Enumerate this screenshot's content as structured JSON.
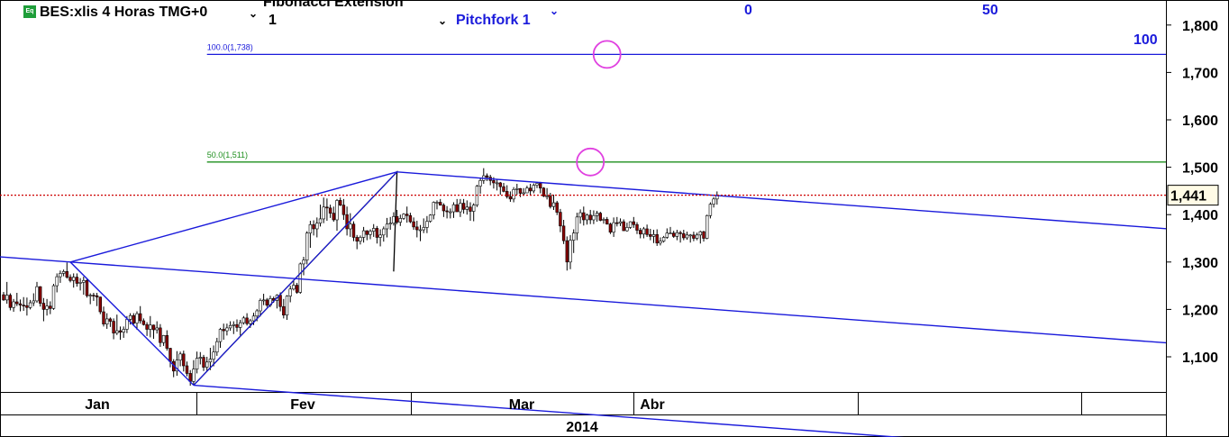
{
  "header": {
    "symbol_badge": "Eq",
    "title": "BES:xlis 4 Horas TMG+0",
    "study_name": "Fibonacci Extension",
    "study_param": "1",
    "pitchfork_name": "Pitchfork 1"
  },
  "colors": {
    "pitchfork": "#1a1adb",
    "fib_50": "#1e8f1e",
    "fib_100": "#1a1adb",
    "last_price_line": "#cc0000",
    "highlight_circle": "#e040e0",
    "candle_down": "#8b0000",
    "candle_up": "#ffffff"
  },
  "chart_data": {
    "type": "candlestick",
    "ylim": [
      1020,
      1860
    ],
    "y_ticks": [
      "1,100",
      "1,200",
      "1,300",
      "1,400",
      "1,500",
      "1,600",
      "1,700",
      "1,800"
    ],
    "last_price": "1,441",
    "x_labels": [
      "Jan",
      "Fev",
      "Mar",
      "Abr"
    ],
    "x_group_label": "2014",
    "fib_levels": [
      {
        "label": "50.0(1,511)",
        "value": 1511
      },
      {
        "label": "100.0(1,738)",
        "value": 1738
      }
    ],
    "pitchfork_labels": [
      "0",
      "50",
      "100"
    ],
    "pitchfork_points": [
      {
        "bar": 20,
        "price": 1300
      },
      {
        "bar": 57,
        "price": 1040
      },
      {
        "bar": 118,
        "price": 1490
      }
    ],
    "fib_anchor_points": [
      {
        "bar": 57,
        "price": 1040
      },
      {
        "bar": 118,
        "price": 1490
      },
      {
        "bar": 117,
        "price": 1280
      }
    ],
    "highlight_points": [
      {
        "bar": 181,
        "price": 1738
      },
      {
        "bar": 176,
        "price": 1511
      }
    ],
    "bars": [
      [
        1231,
        1237,
        1218,
        1220
      ],
      [
        1220,
        1258,
        1212,
        1230
      ],
      [
        1230,
        1234,
        1198,
        1204
      ],
      [
        1204,
        1222,
        1195,
        1216
      ],
      [
        1216,
        1235,
        1207,
        1212
      ],
      [
        1212,
        1221,
        1196,
        1209
      ],
      [
        1209,
        1226,
        1197,
        1208
      ],
      [
        1208,
        1225,
        1187,
        1204
      ],
      [
        1204,
        1220,
        1200,
        1214
      ],
      [
        1214,
        1234,
        1207,
        1218
      ],
      [
        1218,
        1258,
        1214,
        1248
      ],
      [
        1248,
        1249,
        1206,
        1213
      ],
      [
        1213,
        1224,
        1175,
        1200
      ],
      [
        1200,
        1222,
        1187,
        1207
      ],
      [
        1207,
        1217,
        1190,
        1202
      ],
      [
        1202,
        1254,
        1199,
        1250
      ],
      [
        1250,
        1276,
        1236,
        1269
      ],
      [
        1269,
        1282,
        1256,
        1276
      ],
      [
        1276,
        1284,
        1270,
        1280
      ],
      [
        1280,
        1299,
        1265,
        1268
      ],
      [
        1268,
        1274,
        1257,
        1261
      ],
      [
        1261,
        1276,
        1246,
        1268
      ],
      [
        1268,
        1276,
        1248,
        1255
      ],
      [
        1255,
        1266,
        1240,
        1257
      ],
      [
        1257,
        1269,
        1231,
        1261
      ],
      [
        1261,
        1266,
        1225,
        1229
      ],
      [
        1229,
        1234,
        1211,
        1230
      ],
      [
        1230,
        1235,
        1218,
        1229
      ],
      [
        1229,
        1235,
        1207,
        1226
      ],
      [
        1226,
        1227,
        1190,
        1195
      ],
      [
        1195,
        1206,
        1164,
        1169
      ],
      [
        1169,
        1192,
        1159,
        1180
      ],
      [
        1180,
        1183,
        1163,
        1175
      ],
      [
        1175,
        1181,
        1137,
        1150
      ],
      [
        1150,
        1189,
        1146,
        1155
      ],
      [
        1155,
        1164,
        1136,
        1152
      ],
      [
        1152,
        1164,
        1140,
        1158
      ],
      [
        1158,
        1186,
        1150,
        1179
      ],
      [
        1179,
        1192,
        1168,
        1187
      ],
      [
        1187,
        1192,
        1168,
        1171
      ],
      [
        1171,
        1196,
        1157,
        1191
      ],
      [
        1191,
        1207,
        1170,
        1176
      ],
      [
        1176,
        1181,
        1166,
        1168
      ],
      [
        1168,
        1173,
        1144,
        1158
      ],
      [
        1158,
        1186,
        1141,
        1167
      ],
      [
        1167,
        1168,
        1138,
        1157
      ],
      [
        1157,
        1175,
        1149,
        1161
      ],
      [
        1161,
        1169,
        1121,
        1130
      ],
      [
        1130,
        1146,
        1123,
        1145
      ],
      [
        1145,
        1156,
        1113,
        1118
      ],
      [
        1118,
        1119,
        1078,
        1090
      ],
      [
        1090,
        1095,
        1057,
        1070
      ],
      [
        1070,
        1112,
        1060,
        1093
      ],
      [
        1093,
        1111,
        1080,
        1106
      ],
      [
        1106,
        1113,
        1069,
        1081
      ],
      [
        1081,
        1090,
        1059,
        1065
      ],
      [
        1065,
        1072,
        1039,
        1048
      ],
      [
        1048,
        1093,
        1040,
        1074
      ],
      [
        1074,
        1111,
        1065,
        1097
      ],
      [
        1097,
        1110,
        1084,
        1099
      ],
      [
        1099,
        1104,
        1070,
        1078
      ],
      [
        1078,
        1100,
        1070,
        1089
      ],
      [
        1089,
        1119,
        1072,
        1095
      ],
      [
        1095,
        1124,
        1080,
        1110
      ],
      [
        1110,
        1140,
        1102,
        1132
      ],
      [
        1132,
        1161,
        1119,
        1158
      ],
      [
        1158,
        1170,
        1136,
        1155
      ],
      [
        1155,
        1170,
        1145,
        1161
      ],
      [
        1161,
        1175,
        1155,
        1166
      ],
      [
        1166,
        1175,
        1148,
        1168
      ],
      [
        1168,
        1179,
        1153,
        1162
      ],
      [
        1162,
        1178,
        1145,
        1172
      ],
      [
        1172,
        1186,
        1168,
        1182
      ],
      [
        1182,
        1192,
        1166,
        1170
      ],
      [
        1170,
        1180,
        1161,
        1176
      ],
      [
        1176,
        1193,
        1167,
        1186
      ],
      [
        1186,
        1201,
        1175,
        1197
      ],
      [
        1197,
        1223,
        1185,
        1219
      ],
      [
        1219,
        1233,
        1209,
        1220
      ],
      [
        1220,
        1224,
        1205,
        1209
      ],
      [
        1209,
        1229,
        1205,
        1223
      ],
      [
        1223,
        1227,
        1214,
        1219
      ],
      [
        1219,
        1232,
        1202,
        1230
      ],
      [
        1230,
        1236,
        1196,
        1206
      ],
      [
        1206,
        1222,
        1181,
        1188
      ],
      [
        1188,
        1230,
        1178,
        1228
      ],
      [
        1228,
        1250,
        1215,
        1243
      ],
      [
        1243,
        1260,
        1240,
        1251
      ],
      [
        1251,
        1256,
        1233,
        1236
      ],
      [
        1236,
        1299,
        1233,
        1296
      ],
      [
        1296,
        1311,
        1272,
        1304
      ],
      [
        1304,
        1365,
        1295,
        1361
      ],
      [
        1361,
        1387,
        1330,
        1379
      ],
      [
        1379,
        1388,
        1356,
        1370
      ],
      [
        1370,
        1394,
        1352,
        1382
      ],
      [
        1382,
        1421,
        1375,
        1391
      ],
      [
        1391,
        1436,
        1382,
        1416
      ],
      [
        1416,
        1434,
        1387,
        1414
      ],
      [
        1414,
        1421,
        1393,
        1403
      ],
      [
        1403,
        1417,
        1385,
        1389
      ],
      [
        1389,
        1433,
        1366,
        1430
      ],
      [
        1430,
        1436,
        1418,
        1420
      ],
      [
        1420,
        1433,
        1389,
        1400
      ],
      [
        1400,
        1417,
        1356,
        1370
      ],
      [
        1370,
        1403,
        1353,
        1380
      ],
      [
        1380,
        1386,
        1344,
        1352
      ],
      [
        1352,
        1357,
        1327,
        1344
      ],
      [
        1344,
        1356,
        1337,
        1352
      ],
      [
        1352,
        1374,
        1341,
        1366
      ],
      [
        1366,
        1367,
        1346,
        1358
      ],
      [
        1358,
        1369,
        1348,
        1365
      ],
      [
        1365,
        1380,
        1353,
        1371
      ],
      [
        1371,
        1376,
        1339,
        1352
      ],
      [
        1352,
        1369,
        1333,
        1357
      ],
      [
        1357,
        1375,
        1343,
        1370
      ],
      [
        1370,
        1393,
        1352,
        1380
      ],
      [
        1380,
        1395,
        1368,
        1382
      ],
      [
        1382,
        1405,
        1377,
        1396
      ],
      [
        1396,
        1410,
        1380,
        1384
      ],
      [
        1384,
        1400,
        1376,
        1392
      ],
      [
        1392,
        1403,
        1389,
        1401
      ],
      [
        1401,
        1417,
        1383,
        1398
      ],
      [
        1398,
        1404,
        1382,
        1385
      ],
      [
        1385,
        1394,
        1368,
        1374
      ],
      [
        1374,
        1387,
        1352,
        1368
      ],
      [
        1368,
        1378,
        1344,
        1368
      ],
      [
        1368,
        1392,
        1361,
        1373
      ],
      [
        1373,
        1397,
        1361,
        1386
      ],
      [
        1386,
        1401,
        1383,
        1399
      ],
      [
        1399,
        1428,
        1390,
        1426
      ],
      [
        1426,
        1430,
        1411,
        1426
      ],
      [
        1426,
        1433,
        1419,
        1420
      ],
      [
        1420,
        1424,
        1395,
        1408
      ],
      [
        1408,
        1418,
        1392,
        1406
      ],
      [
        1406,
        1413,
        1392,
        1406
      ],
      [
        1406,
        1426,
        1393,
        1421
      ],
      [
        1421,
        1433,
        1406,
        1406
      ],
      [
        1406,
        1433,
        1395,
        1424
      ],
      [
        1424,
        1433,
        1402,
        1411
      ],
      [
        1411,
        1430,
        1400,
        1416
      ],
      [
        1416,
        1426,
        1387,
        1407
      ],
      [
        1407,
        1424,
        1386,
        1420
      ],
      [
        1420,
        1463,
        1416,
        1460
      ],
      [
        1460,
        1478,
        1444,
        1472
      ],
      [
        1472,
        1498,
        1465,
        1482
      ],
      [
        1482,
        1487,
        1471,
        1479
      ],
      [
        1479,
        1484,
        1462,
        1472
      ],
      [
        1472,
        1479,
        1455,
        1467
      ],
      [
        1467,
        1475,
        1451,
        1467
      ],
      [
        1467,
        1469,
        1442,
        1459
      ],
      [
        1459,
        1467,
        1447,
        1449
      ],
      [
        1449,
        1462,
        1434,
        1438
      ],
      [
        1438,
        1449,
        1427,
        1433
      ],
      [
        1433,
        1458,
        1426,
        1453
      ],
      [
        1453,
        1465,
        1442,
        1455
      ],
      [
        1455,
        1456,
        1437,
        1445
      ],
      [
        1445,
        1456,
        1440,
        1446
      ],
      [
        1446,
        1461,
        1445,
        1456
      ],
      [
        1456,
        1465,
        1442,
        1450
      ],
      [
        1450,
        1466,
        1445,
        1462
      ],
      [
        1462,
        1469,
        1456,
        1466
      ],
      [
        1466,
        1469,
        1445,
        1456
      ],
      [
        1456,
        1458,
        1437,
        1439
      ],
      [
        1439,
        1456,
        1432,
        1439
      ],
      [
        1439,
        1446,
        1413,
        1417
      ],
      [
        1417,
        1442,
        1410,
        1425
      ],
      [
        1425,
        1429,
        1399,
        1405
      ],
      [
        1405,
        1412,
        1363,
        1376
      ],
      [
        1376,
        1389,
        1338,
        1345
      ],
      [
        1345,
        1354,
        1282,
        1300
      ],
      [
        1300,
        1357,
        1285,
        1346
      ],
      [
        1346,
        1369,
        1319,
        1361
      ],
      [
        1361,
        1404,
        1346,
        1395
      ],
      [
        1395,
        1411,
        1381,
        1404
      ],
      [
        1404,
        1417,
        1377,
        1389
      ],
      [
        1389,
        1402,
        1379,
        1399
      ],
      [
        1399,
        1410,
        1380,
        1389
      ],
      [
        1389,
        1409,
        1380,
        1398
      ],
      [
        1398,
        1408,
        1385,
        1403
      ],
      [
        1403,
        1406,
        1386,
        1388
      ],
      [
        1388,
        1394,
        1381,
        1390
      ],
      [
        1390,
        1395,
        1379,
        1380
      ],
      [
        1380,
        1383,
        1359,
        1363
      ],
      [
        1363,
        1394,
        1353,
        1383
      ],
      [
        1383,
        1395,
        1375,
        1382
      ],
      [
        1382,
        1392,
        1376,
        1385
      ],
      [
        1385,
        1390,
        1366,
        1366
      ],
      [
        1366,
        1383,
        1364,
        1373
      ],
      [
        1373,
        1386,
        1370,
        1385
      ],
      [
        1385,
        1395,
        1372,
        1379
      ],
      [
        1379,
        1384,
        1359,
        1367
      ],
      [
        1367,
        1372,
        1350,
        1359
      ],
      [
        1359,
        1374,
        1350,
        1370
      ],
      [
        1370,
        1379,
        1353,
        1358
      ],
      [
        1358,
        1370,
        1346,
        1354
      ],
      [
        1354,
        1368,
        1340,
        1358
      ],
      [
        1358,
        1369,
        1334,
        1340
      ],
      [
        1340,
        1352,
        1335,
        1344
      ],
      [
        1344,
        1355,
        1341,
        1352
      ],
      [
        1352,
        1371,
        1349,
        1361
      ],
      [
        1361,
        1374,
        1359,
        1361
      ],
      [
        1361,
        1366,
        1351,
        1354
      ],
      [
        1354,
        1368,
        1346,
        1362
      ],
      [
        1362,
        1366,
        1341,
        1360
      ],
      [
        1360,
        1368,
        1346,
        1351
      ],
      [
        1351,
        1364,
        1347,
        1357
      ],
      [
        1357,
        1359,
        1341,
        1357
      ],
      [
        1357,
        1364,
        1344,
        1350
      ],
      [
        1350,
        1362,
        1346,
        1357
      ],
      [
        1357,
        1366,
        1339,
        1364
      ],
      [
        1364,
        1366,
        1343,
        1350
      ],
      [
        1350,
        1400,
        1348,
        1398
      ],
      [
        1398,
        1426,
        1392,
        1422
      ],
      [
        1422,
        1437,
        1415,
        1433
      ],
      [
        1433,
        1449,
        1421,
        1441
      ]
    ]
  }
}
